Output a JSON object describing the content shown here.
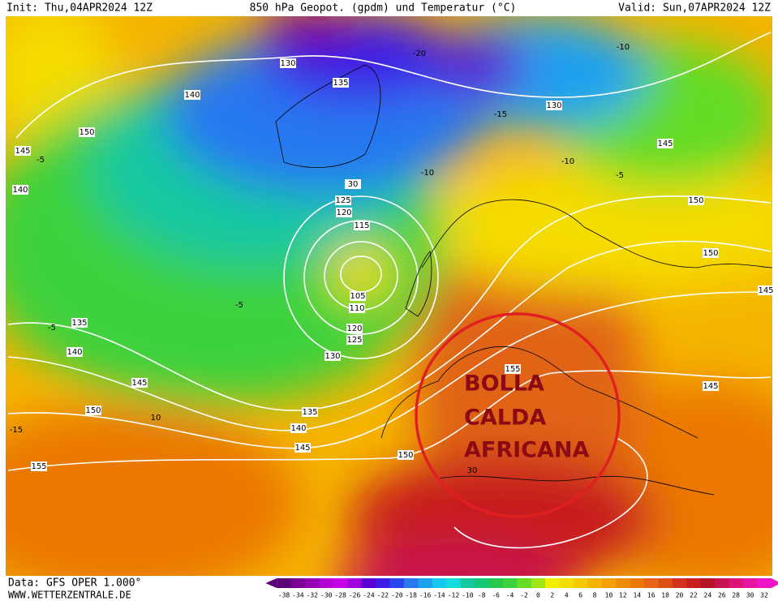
{
  "header": {
    "init": "Init: Thu,04APR2024 12Z",
    "title": "850 hPa Geopot. (gpdm) und Temperatur (°C)",
    "valid": "Valid: Sun,07APR2024 12Z"
  },
  "geopotential_labels": [
    "130",
    "135",
    "140",
    "150",
    "145",
    "140",
    "130",
    "145",
    "150",
    "30",
    "125",
    "120",
    "115",
    "105",
    "110",
    "120",
    "125",
    "130",
    "135",
    "140",
    "145",
    "150",
    "155",
    "135",
    "140",
    "145",
    "150",
    "155",
    "145",
    "150",
    "145"
  ],
  "temperature_labels": [
    "-20",
    "-10",
    "-15",
    "-10",
    "-5",
    "-10",
    "-5",
    "-5",
    "-15",
    "10",
    "30",
    "-5"
  ],
  "annotation": [
    "BOLLA",
    "CALDA",
    "AFRICANA"
  ],
  "colorbar": {
    "values": [
      -38,
      -34,
      -32,
      -30,
      -28,
      -26,
      -24,
      -22,
      -20,
      -18,
      -16,
      -14,
      -12,
      -10,
      -8,
      -6,
      -4,
      -2,
      0,
      2,
      4,
      6,
      8,
      10,
      12,
      14,
      16,
      18,
      20,
      22,
      24,
      26,
      28,
      30,
      32
    ],
    "colors": [
      "#5a0078",
      "#7a0096",
      "#9600b4",
      "#b400d2",
      "#c800e6",
      "#a000dc",
      "#5a00d2",
      "#3c1ee6",
      "#2846f0",
      "#2878f0",
      "#1ea0f0",
      "#14c8f0",
      "#14dcdc",
      "#14c8a0",
      "#14c878",
      "#28c850",
      "#3cd23c",
      "#64dc28",
      "#a0e614",
      "#f0f000",
      "#f5dc00",
      "#f5c800",
      "#f5b400",
      "#f5a000",
      "#f08c00",
      "#eb7800",
      "#e66414",
      "#dc5014",
      "#d2321e",
      "#c81e1e",
      "#b41428",
      "#c81450",
      "#dc1478",
      "#e614a0",
      "#f014c8"
    ]
  },
  "footer": {
    "data": "Data: GFS OPER 1.000°",
    "site": "WWW.WETTERZENTRALE.DE"
  }
}
